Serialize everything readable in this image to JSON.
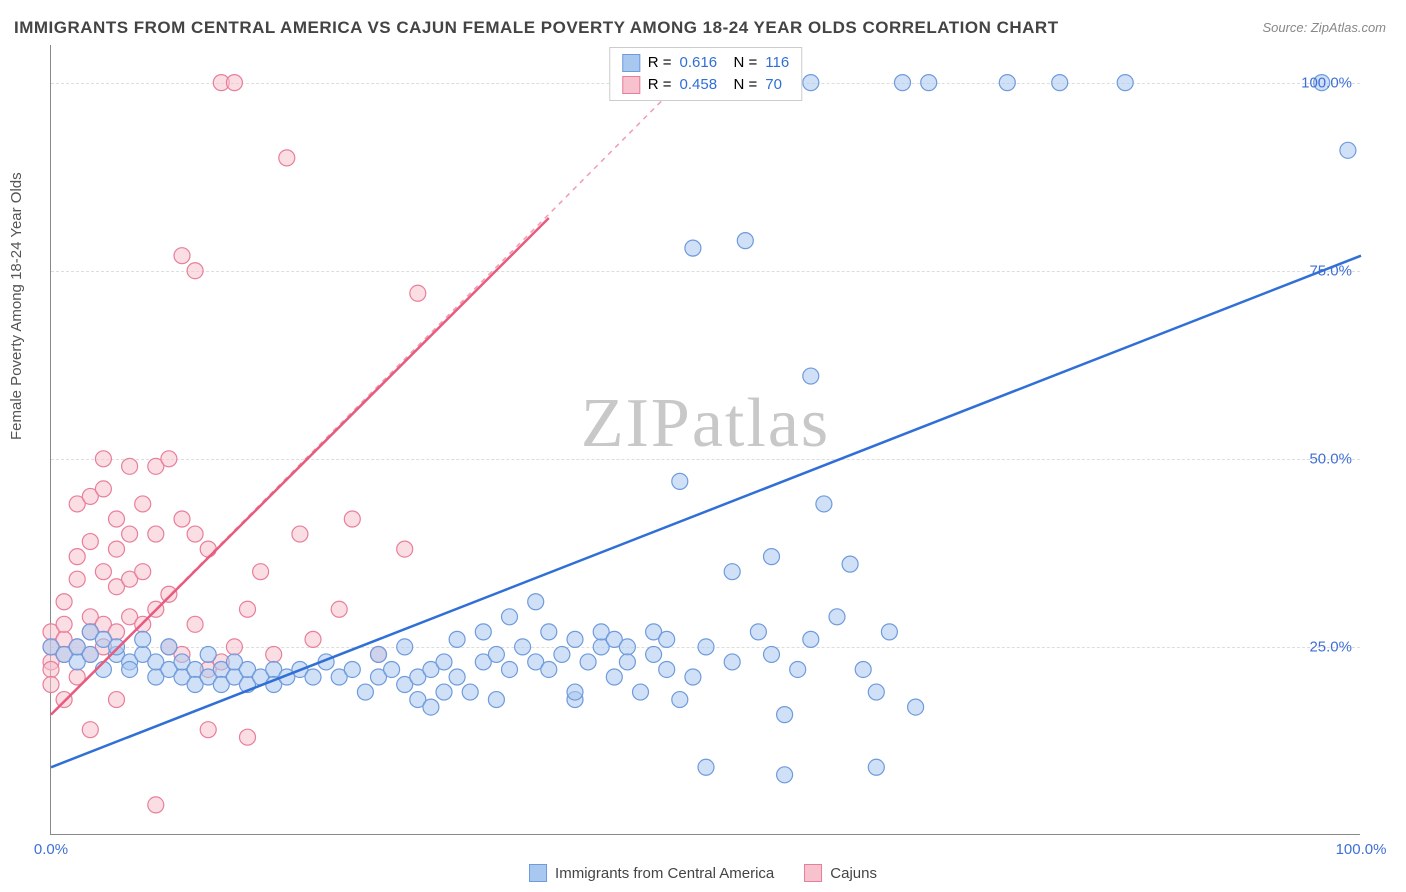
{
  "title": "IMMIGRANTS FROM CENTRAL AMERICA VS CAJUN FEMALE POVERTY AMONG 18-24 YEAR OLDS CORRELATION CHART",
  "source": "Source: ZipAtlas.com",
  "watermark": "ZIPatlas",
  "ylabel": "Female Poverty Among 18-24 Year Olds",
  "chart": {
    "type": "scatter",
    "xlim": [
      0,
      100
    ],
    "ylim": [
      0,
      105
    ],
    "xticks": [
      {
        "pos": 0,
        "label": "0.0%"
      },
      {
        "pos": 100,
        "label": "100.0%"
      }
    ],
    "yticks": [
      {
        "pos": 25,
        "label": "25.0%"
      },
      {
        "pos": 50,
        "label": "50.0%"
      },
      {
        "pos": 75,
        "label": "75.0%"
      },
      {
        "pos": 100,
        "label": "100.0%"
      }
    ],
    "grid_color": "#dddddd",
    "background_color": "#ffffff",
    "marker_radius": 8,
    "marker_opacity": 0.55,
    "line_width": 2.5,
    "tick_color": "#3f6fd6"
  },
  "series": [
    {
      "id": "blue",
      "label": "Immigrants from Central America",
      "R": "0.616",
      "N": "116",
      "fill": "#a9c8f0",
      "stroke": "#6f9bdc",
      "line_color": "#2f6fd6",
      "trend_solid": {
        "x1": 0,
        "y1": 9,
        "x2": 100,
        "y2": 77
      },
      "points": [
        [
          0,
          25
        ],
        [
          1,
          24
        ],
        [
          2,
          23
        ],
        [
          2,
          25
        ],
        [
          3,
          24
        ],
        [
          3,
          27
        ],
        [
          4,
          22
        ],
        [
          4,
          26
        ],
        [
          5,
          24
        ],
        [
          5,
          25
        ],
        [
          6,
          23
        ],
        [
          6,
          22
        ],
        [
          7,
          24
        ],
        [
          7,
          26
        ],
        [
          8,
          21
        ],
        [
          8,
          23
        ],
        [
          9,
          22
        ],
        [
          9,
          25
        ],
        [
          10,
          21
        ],
        [
          10,
          23
        ],
        [
          11,
          22
        ],
        [
          11,
          20
        ],
        [
          12,
          21
        ],
        [
          12,
          24
        ],
        [
          13,
          22
        ],
        [
          13,
          20
        ],
        [
          14,
          21
        ],
        [
          14,
          23
        ],
        [
          15,
          20
        ],
        [
          15,
          22
        ],
        [
          16,
          21
        ],
        [
          17,
          22
        ],
        [
          17,
          20
        ],
        [
          18,
          21
        ],
        [
          19,
          22
        ],
        [
          20,
          21
        ],
        [
          21,
          23
        ],
        [
          22,
          21
        ],
        [
          23,
          22
        ],
        [
          24,
          19
        ],
        [
          25,
          21
        ],
        [
          25,
          24
        ],
        [
          26,
          22
        ],
        [
          27,
          20
        ],
        [
          27,
          25
        ],
        [
          28,
          21
        ],
        [
          28,
          18
        ],
        [
          29,
          22
        ],
        [
          30,
          23
        ],
        [
          30,
          19
        ],
        [
          31,
          21
        ],
        [
          31,
          26
        ],
        [
          32,
          19
        ],
        [
          33,
          23
        ],
        [
          33,
          27
        ],
        [
          34,
          24
        ],
        [
          35,
          22
        ],
        [
          35,
          29
        ],
        [
          36,
          25
        ],
        [
          37,
          31
        ],
        [
          37,
          23
        ],
        [
          38,
          27
        ],
        [
          38,
          22
        ],
        [
          39,
          24
        ],
        [
          40,
          26
        ],
        [
          40,
          18
        ],
        [
          41,
          23
        ],
        [
          42,
          25
        ],
        [
          42,
          27
        ],
        [
          43,
          21
        ],
        [
          43,
          26
        ],
        [
          44,
          25
        ],
        [
          44,
          23
        ],
        [
          45,
          19
        ],
        [
          46,
          24
        ],
        [
          46,
          27
        ],
        [
          47,
          22
        ],
        [
          47,
          26
        ],
        [
          48,
          18
        ],
        [
          49,
          21
        ],
        [
          48,
          47
        ],
        [
          49,
          78
        ],
        [
          50,
          25
        ],
        [
          51,
          100
        ],
        [
          52,
          23
        ],
        [
          52,
          35
        ],
        [
          53,
          79
        ],
        [
          54,
          27
        ],
        [
          55,
          24
        ],
        [
          55,
          37
        ],
        [
          56,
          16
        ],
        [
          57,
          22
        ],
        [
          58,
          61
        ],
        [
          58,
          26
        ],
        [
          59,
          44
        ],
        [
          60,
          29
        ],
        [
          61,
          36
        ],
        [
          62,
          22
        ],
        [
          63,
          19
        ],
        [
          64,
          27
        ],
        [
          65,
          100
        ],
        [
          66,
          17
        ],
        [
          67,
          100
        ],
        [
          73,
          100
        ],
        [
          77,
          100
        ],
        [
          82,
          100
        ],
        [
          97,
          100
        ],
        [
          99,
          91
        ],
        [
          63,
          9
        ],
        [
          56,
          8
        ],
        [
          50,
          9
        ],
        [
          58,
          100
        ],
        [
          55,
          100
        ],
        [
          40,
          19
        ],
        [
          34,
          18
        ],
        [
          29,
          17
        ]
      ]
    },
    {
      "id": "pink",
      "label": "Cajuns",
      "R": "0.458",
      "N": "70",
      "fill": "#f7c1cd",
      "stroke": "#e87f9a",
      "line_color": "#e85a7e",
      "trend_solid": {
        "x1": 0,
        "y1": 16,
        "x2": 38,
        "y2": 82
      },
      "trend_dashed": {
        "x1": 0,
        "y1": 16,
        "x2": 48,
        "y2": 100
      },
      "points": [
        [
          0,
          23
        ],
        [
          0,
          25
        ],
        [
          0,
          27
        ],
        [
          0,
          22
        ],
        [
          0,
          20
        ],
        [
          1,
          26
        ],
        [
          1,
          28
        ],
        [
          1,
          24
        ],
        [
          1,
          18
        ],
        [
          1,
          31
        ],
        [
          2,
          34
        ],
        [
          2,
          25
        ],
        [
          2,
          21
        ],
        [
          2,
          37
        ],
        [
          2,
          44
        ],
        [
          3,
          27
        ],
        [
          3,
          45
        ],
        [
          3,
          29
        ],
        [
          3,
          39
        ],
        [
          3,
          24
        ],
        [
          4,
          35
        ],
        [
          4,
          46
        ],
        [
          4,
          28
        ],
        [
          4,
          50
        ],
        [
          4,
          25
        ],
        [
          5,
          33
        ],
        [
          5,
          42
        ],
        [
          5,
          27
        ],
        [
          5,
          38
        ],
        [
          6,
          40
        ],
        [
          6,
          29
        ],
        [
          6,
          49
        ],
        [
          6,
          34
        ],
        [
          7,
          35
        ],
        [
          7,
          28
        ],
        [
          7,
          44
        ],
        [
          8,
          49
        ],
        [
          8,
          30
        ],
        [
          8,
          40
        ],
        [
          9,
          50
        ],
        [
          9,
          25
        ],
        [
          9,
          32
        ],
        [
          10,
          24
        ],
        [
          10,
          42
        ],
        [
          10,
          77
        ],
        [
          11,
          28
        ],
        [
          11,
          75
        ],
        [
          11,
          40
        ],
        [
          12,
          22
        ],
        [
          12,
          38
        ],
        [
          13,
          23
        ],
        [
          13,
          100
        ],
        [
          14,
          100
        ],
        [
          14,
          25
        ],
        [
          15,
          30
        ],
        [
          16,
          35
        ],
        [
          17,
          24
        ],
        [
          18,
          90
        ],
        [
          19,
          40
        ],
        [
          20,
          26
        ],
        [
          22,
          30
        ],
        [
          23,
          42
        ],
        [
          25,
          24
        ],
        [
          27,
          38
        ],
        [
          28,
          72
        ],
        [
          12,
          14
        ],
        [
          15,
          13
        ],
        [
          8,
          4
        ],
        [
          3,
          14
        ],
        [
          5,
          18
        ]
      ]
    }
  ],
  "legend_top": {
    "R_label": "R =",
    "N_label": "N ="
  }
}
